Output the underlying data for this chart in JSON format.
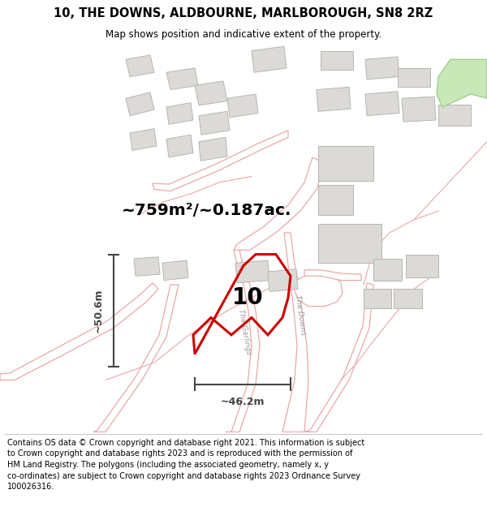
{
  "title": "10, THE DOWNS, ALDBOURNE, MARLBOROUGH, SN8 2RZ",
  "subtitle": "Map shows position and indicative extent of the property.",
  "area_text": "~759m²/~0.187ac.",
  "label_number": "10",
  "dim_horizontal": "~46.2m",
  "dim_vertical": "~50.6m",
  "footer": "Contains OS data © Crown copyright and database right 2021. This information is subject to Crown copyright and database rights 2023 and is reproduced with the permission of HM Land Registry. The polygons (including the associated geometry, namely x, y co-ordinates) are subject to Crown copyright and database rights 2023 Ordnance Survey 100026316.",
  "bg_color": "#f7f7f5",
  "road_line_color": "#e8a8a8",
  "road_fill_color": "#ffffff",
  "building_fill": "#dcdad7",
  "building_edge": "#b8b5b0",
  "plot_color": "#cc0000",
  "dim_color": "#444444",
  "label_road1": "The Garlings",
  "label_road2": "The Downs",
  "green_color": "#c8e8b8",
  "green_edge": "#90c878"
}
